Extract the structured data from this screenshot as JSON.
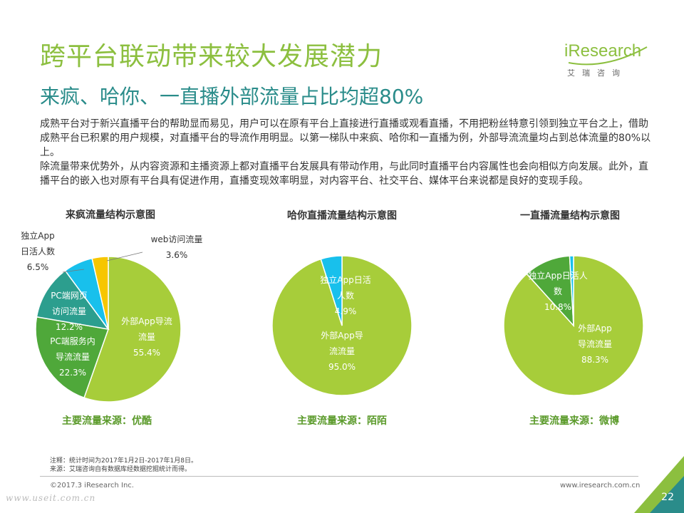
{
  "header": {
    "title": "跨平台联动带来较大发展潜力",
    "subtitle": "来疯、哈你、一直播外部流量占比均超80%"
  },
  "logo": {
    "word": "iResearch",
    "cn": "艾瑞咨询"
  },
  "body": {
    "paragraph1": "成熟平台对于新兴直播平台的帮助显而易见，用户可以在原有平台上直接进行直播或观看直播，不用把粉丝特意引领到独立平台之上，借助成熟平台已积累的用户规模，对直播平台的导流作用明显。以第一梯队中来疯、哈你和一直播为例，外部导流流量均占到总体流量的80%以上。",
    "paragraph2": "除流量带来优势外，从内容资源和主播资源上都对直播平台发展具有带动作用，与此同时直播平台内容属性也会向相似方向发展。此外，直播平台的嵌入也对原有平台具有促进作用，直播变现效率明显，对内容平台、社交平台、媒体平台来说都是良好的变现手段。"
  },
  "colors": {
    "green": "#a7cd3a",
    "dark_green": "#4fa83a",
    "teal": "#2c9e8e",
    "cyan": "#18c0ec",
    "yellow": "#f7c600"
  },
  "chart_data": [
    {
      "type": "pie",
      "title": "来疯流量结构示意图",
      "source_note": "主要流量来源：优酷",
      "slices": [
        {
          "label_lines": [
            "外部App导流",
            "流量",
            "55.4%"
          ],
          "value": 55.4,
          "color": "#a7cd3a"
        },
        {
          "label_lines": [
            "PC端服务内",
            "导流流量",
            "22.3%"
          ],
          "value": 22.3,
          "color": "#4fa83a"
        },
        {
          "label_lines": [
            "PC端网页",
            "访问流量",
            "12.2%"
          ],
          "value": 12.2,
          "color": "#2c9e8e"
        },
        {
          "label_lines": [
            "独立App",
            "日活人数",
            "6.5%"
          ],
          "value": 6.5,
          "color": "#18c0ec"
        },
        {
          "label_lines": [
            "web访问流量",
            "3.6%"
          ],
          "value": 3.6,
          "color": "#f7c600"
        }
      ]
    },
    {
      "type": "pie",
      "title": "哈你直播流量结构示意图",
      "source_note": "主要流量来源：陌陌",
      "slices": [
        {
          "label_lines": [
            "外部App导",
            "流流量",
            "95.0%"
          ],
          "value": 95.0,
          "color": "#a7cd3a"
        },
        {
          "label_lines": [
            "独立App日活",
            "人数",
            "4.9%"
          ],
          "value": 4.9,
          "color": "#18c0ec"
        }
      ]
    },
    {
      "type": "pie",
      "title": "一直播流量结构示意图",
      "source_note": "主要流量来源：微博",
      "slices": [
        {
          "label_lines": [
            "外部App",
            "导流流量",
            "88.3%"
          ],
          "value": 88.3,
          "color": "#a7cd3a"
        },
        {
          "label_lines": [
            "独立App日活人",
            "数",
            "10.8%"
          ],
          "value": 10.8,
          "color": "#4fa83a"
        },
        {
          "label_lines": [],
          "value": 0.9,
          "color": "#18c0ec"
        }
      ]
    }
  ],
  "footer": {
    "note1": "注释：统计时间为2017年1月2日-2017年1月8日。",
    "note2": "来源：艾瑞咨询自有数据库经数据挖掘统计而得。",
    "copyright": "©2017.3 iResearch Inc.",
    "website": "www.iresearch.com.cn",
    "page_number": "22",
    "watermark": "www.useit.com.cn"
  }
}
